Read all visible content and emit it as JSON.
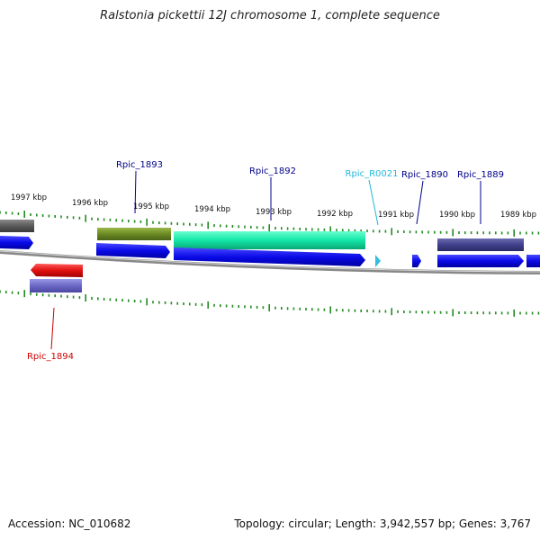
{
  "title": "Ralstonia pickettii 12J chromosome 1, complete sequence",
  "accession": "Accession: NC_010682",
  "summary": "Topology: circular; Length: 3,942,557 bp; Genes: 3,767",
  "ticks": [
    "1997 kbp",
    "1996 kbp",
    "1995 kbp",
    "1994 kbp",
    "1993 kbp",
    "1992 kbp",
    "1991 kbp",
    "1990 kbp",
    "1989 kbp"
  ],
  "genes": [
    {
      "name": "Rpic_1893",
      "color": "#00008b"
    },
    {
      "name": "Rpic_1892",
      "color": "#00008b"
    },
    {
      "name": "Rpic_R0021",
      "color": "#22b8d8"
    },
    {
      "name": "Rpic_1890",
      "color": "#00008b"
    },
    {
      "name": "Rpic_1889",
      "color": "#00008b"
    },
    {
      "name": "Rpic_1894",
      "color": "#cc0000"
    }
  ],
  "colors": {
    "cds": "#0a0ae8",
    "rna": "#33bde0",
    "cog_green": "#6b8a23",
    "cog_teal": "#12e6a6",
    "cog_gray": "#5a5a5a",
    "cog_navy": "#3f3f8c",
    "cog_purple": "#6a68c4",
    "minus_red": "#e01010",
    "tick": "#228b22",
    "backbone": "#8a8a8a"
  }
}
